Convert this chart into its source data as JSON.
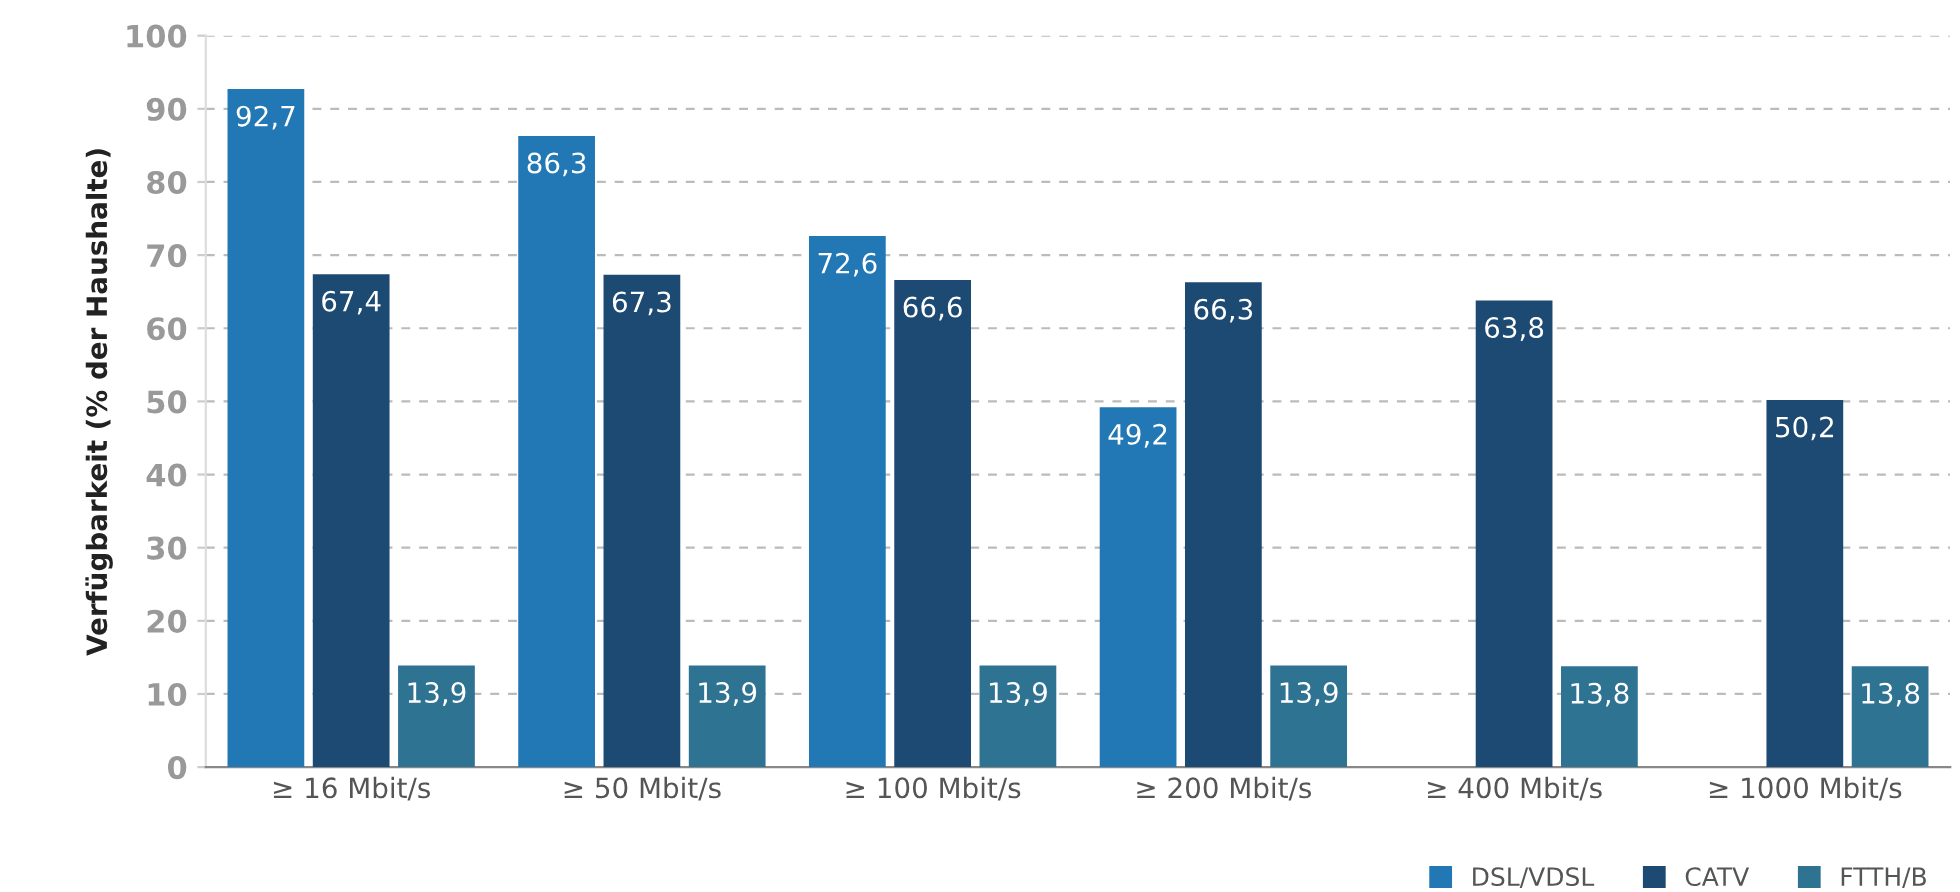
{
  "chart_data": {
    "type": "bar",
    "ylabel": "Verfügbarkeit (% der Haushalte)",
    "categories": [
      "≥ 16 Mbit/s",
      "≥ 50 Mbit/s",
      "≥ 100 Mbit/s",
      "≥ 200 Mbit/s",
      "≥ 400 Mbit/s",
      "≥ 1000 Mbit/s"
    ],
    "series": [
      {
        "name": "DSL/VDSL",
        "color": "#2277b5",
        "values": [
          92.7,
          86.3,
          72.6,
          49.2,
          null,
          null
        ],
        "value_labels": [
          "92,7",
          "86,3",
          "72,6",
          "49,2",
          null,
          null
        ]
      },
      {
        "name": "CATV",
        "color": "#1c4a72",
        "values": [
          67.4,
          67.3,
          66.6,
          66.3,
          63.8,
          50.2
        ],
        "value_labels": [
          "67,4",
          "67,3",
          "66,6",
          "66,3",
          "63,8",
          "50,2"
        ]
      },
      {
        "name": "FTTH/B",
        "color": "#2f7393",
        "values": [
          13.9,
          13.9,
          13.9,
          13.9,
          13.8,
          13.8
        ],
        "value_labels": [
          "13,9",
          "13,9",
          "13,9",
          "13,9",
          "13,8",
          "13,8"
        ]
      }
    ],
    "ylim": [
      0,
      100
    ],
    "yticks": [
      0,
      10,
      20,
      30,
      40,
      50,
      60,
      70,
      80,
      90,
      100
    ],
    "grid": "y",
    "legend": "bottom right"
  }
}
